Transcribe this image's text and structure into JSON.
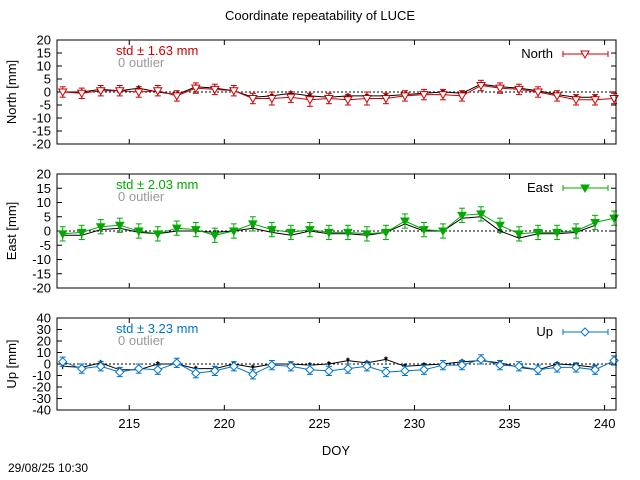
{
  "footer": {
    "timestamp": "29/08/25 10:30"
  },
  "chart_data": {
    "type": "line",
    "title": "Coordinate repeatability of LUCE",
    "xlabel": "DOY",
    "xlim": [
      211.2,
      240.6
    ],
    "x_ticks": [
      215,
      220,
      225,
      230,
      235,
      240
    ],
    "panels": [
      {
        "id": "north",
        "ylabel": "North [mm]",
        "ylim": [
          -20,
          20
        ],
        "y_ticks": [
          -20,
          -15,
          -10,
          -5,
          0,
          5,
          10,
          15,
          20
        ],
        "stat_text": "std ± 1.63 mm",
        "outlier_text": "0 outlier",
        "color": "#cc0000",
        "legend": "North",
        "marker": "triangle-down-open",
        "reference_line": 0,
        "x": [
          211.5,
          212.5,
          213.5,
          214.5,
          215.5,
          216.5,
          217.5,
          218.5,
          219.5,
          220.5,
          221.5,
          222.5,
          223.5,
          224.5,
          225.5,
          226.5,
          227.5,
          228.5,
          229.5,
          230.5,
          231.5,
          232.5,
          233.5,
          234.5,
          235.5,
          236.5,
          237.5,
          238.5,
          239.5,
          240.5
        ],
        "series": [
          {
            "name": "North",
            "values": [
              0,
              -0.5,
              0.5,
              0.5,
              0,
              0.5,
              -1.5,
              1.5,
              1,
              0.5,
              -2.5,
              -2.5,
              -2,
              -3,
              -2.5,
              -3,
              -2.5,
              -2.5,
              -1.5,
              -1,
              -1,
              -1.5,
              2.5,
              1.5,
              1,
              0,
              -1.5,
              -3,
              -3,
              -2.5
            ],
            "error": [
              2,
              2,
              2,
              2,
              2,
              2,
              2,
              2,
              2,
              2,
              2,
              2.5,
              2,
              2.5,
              2,
              2,
              2.5,
              2,
              2,
              2,
              2,
              2,
              2,
              2,
              2,
              2,
              2,
              2,
              2,
              2
            ]
          },
          {
            "name": "reference",
            "values": [
              0,
              0,
              1,
              0.5,
              1.5,
              0,
              -1,
              2,
              1.5,
              0.5,
              -2,
              -1.5,
              -0.5,
              -1.5,
              -2,
              -1.5,
              -1.5,
              -1.5,
              -1,
              -0.5,
              0,
              -0.5,
              3,
              2,
              1.5,
              0.5,
              -1,
              -2,
              -2,
              null
            ]
          }
        ]
      },
      {
        "id": "east",
        "ylabel": "East [mm]",
        "ylim": [
          -20,
          20
        ],
        "y_ticks": [
          -20,
          -15,
          -10,
          -5,
          0,
          5,
          10,
          15,
          20
        ],
        "stat_text": "std ± 2.03 mm",
        "outlier_text": "0 outlier",
        "color": "#00aa00",
        "legend": "East",
        "marker": "triangle-down-filled",
        "reference_line": 0,
        "x": [
          211.5,
          212.5,
          213.5,
          214.5,
          215.5,
          216.5,
          217.5,
          218.5,
          219.5,
          220.5,
          221.5,
          222.5,
          223.5,
          224.5,
          225.5,
          226.5,
          227.5,
          228.5,
          229.5,
          230.5,
          231.5,
          232.5,
          233.5,
          234.5,
          235.5,
          236.5,
          237.5,
          238.5,
          239.5,
          240.5
        ],
        "series": [
          {
            "name": "East",
            "values": [
              -1,
              -0.5,
              1.5,
              2,
              0,
              -1,
              1,
              0.5,
              -1.5,
              0,
              2.5,
              0.5,
              -0.5,
              0.5,
              -0.5,
              -0.5,
              -1,
              -0.5,
              3.5,
              0.5,
              0,
              5.5,
              6,
              2,
              -1,
              -0.5,
              -0.5,
              0,
              3,
              4.5
            ],
            "error": [
              2.5,
              2.5,
              2.5,
              2.5,
              2.5,
              2.5,
              2.5,
              2.5,
              2.5,
              2.5,
              2.5,
              2.5,
              2.5,
              2.5,
              2.5,
              2.5,
              2.5,
              2.5,
              2.5,
              2.5,
              2.5,
              2.5,
              2.5,
              2.5,
              2.5,
              2.5,
              2.5,
              2.5,
              2.5,
              2.5
            ]
          },
          {
            "name": "reference",
            "values": [
              -1.5,
              -1.5,
              0.5,
              1,
              -0.5,
              -1,
              0,
              0,
              -0.5,
              0,
              1,
              -0.5,
              -1.5,
              0,
              -1,
              -1,
              -1.5,
              -0.5,
              2.5,
              0,
              0,
              4.5,
              5,
              0,
              -2.5,
              -1,
              -1,
              -0.5,
              2,
              null
            ]
          }
        ]
      },
      {
        "id": "up",
        "ylabel": "Up [mm]",
        "ylim": [
          -40,
          40
        ],
        "y_ticks": [
          -40,
          -30,
          -20,
          -10,
          0,
          10,
          20,
          30,
          40
        ],
        "y_tick_labels": [
          "-40",
          "-30",
          "-20",
          "-10",
          "0",
          "10",
          "20",
          "30",
          "40"
        ],
        "stat_text": "std ± 3.23 mm",
        "outlier_text": "0 outlier",
        "color": "#0073cc",
        "legend": "Up",
        "marker": "diamond-open",
        "reference_line": 0,
        "x": [
          211.5,
          212.5,
          213.5,
          214.5,
          215.5,
          216.5,
          217.5,
          218.5,
          219.5,
          220.5,
          221.5,
          222.5,
          223.5,
          224.5,
          225.5,
          226.5,
          227.5,
          228.5,
          229.5,
          230.5,
          231.5,
          232.5,
          233.5,
          234.5,
          235.5,
          236.5,
          237.5,
          238.5,
          239.5,
          240.5
        ],
        "series": [
          {
            "name": "Up",
            "values": [
              2,
              -4,
              -2,
              -7,
              -4,
              -5,
              1,
              -8,
              -6,
              -2,
              -9,
              -1,
              -2,
              -5,
              -6,
              -4,
              -2,
              -7,
              -6,
              -5,
              -1,
              -1,
              4,
              -1,
              -2,
              -5,
              -3,
              -3,
              -5,
              3
            ],
            "error": [
              4,
              4,
              4,
              4,
              4,
              4,
              4,
              4,
              4,
              4,
              4,
              4,
              4,
              4,
              4,
              4,
              4,
              4,
              4,
              4,
              4,
              4,
              4,
              4,
              4,
              4,
              4,
              4,
              4,
              4
            ]
          },
          {
            "name": "reference",
            "values": [
              -2,
              -3,
              1,
              -5,
              -5,
              0,
              0,
              -4,
              -4,
              0,
              -3,
              0,
              0,
              -1,
              0,
              3,
              1,
              4,
              -2,
              -1,
              0,
              2,
              3,
              1,
              -3,
              -5,
              0,
              -1,
              -3,
              null
            ]
          }
        ]
      }
    ]
  }
}
